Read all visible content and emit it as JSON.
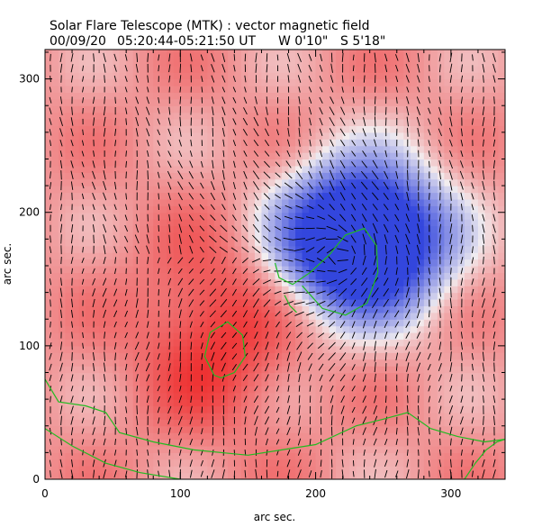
{
  "chart_data": {
    "type": "heatmap",
    "title": "Solar Flare Telescope (MTK) : vector magnetic field",
    "subtitle": {
      "date": "00/09/20",
      "time_range": "05:20:44-05:21:50 UT",
      "longitude": "W 0'10\"",
      "latitude": "S 5'18\""
    },
    "xlabel": "arc sec.",
    "ylabel": "arc sec.",
    "xlim": [
      0,
      340
    ],
    "ylim": [
      0,
      322
    ],
    "xticks": [
      0,
      100,
      200,
      300
    ],
    "yticks": [
      0,
      100,
      200,
      300
    ],
    "xtick_labels": [
      "0",
      "100",
      "200",
      "300"
    ],
    "ytick_labels": [
      "0",
      "100",
      "200",
      "300"
    ],
    "colors": {
      "positive_polarity": "#ee2020",
      "negative_polarity": "#3346dd",
      "neutral": "#f2eef0",
      "contour": "#22bb22",
      "vectors": "#000000"
    },
    "regions": [
      {
        "polarity": "negative",
        "center": [
          235,
          180
        ],
        "extent": [
          70,
          65
        ],
        "strength": 1.0
      },
      {
        "polarity": "positive",
        "center": [
          125,
          110
        ],
        "extent": [
          70,
          85
        ],
        "strength": 1.0
      }
    ],
    "contours": [
      {
        "name": "neutral-line-main",
        "points": [
          [
            190,
            145
          ],
          [
            205,
            128
          ],
          [
            222,
            123
          ],
          [
            238,
            132
          ],
          [
            246,
            155
          ],
          [
            245,
            175
          ],
          [
            236,
            188
          ],
          [
            222,
            183
          ],
          [
            210,
            168
          ],
          [
            196,
            155
          ],
          [
            183,
            146
          ],
          [
            173,
            151
          ],
          [
            170,
            162
          ]
        ]
      },
      {
        "name": "neutral-line-left",
        "points": [
          [
            177,
            138
          ],
          [
            181,
            130
          ],
          [
            186,
            125
          ]
        ]
      },
      {
        "name": "positive-core-contour",
        "points": [
          [
            125,
            78
          ],
          [
            118,
            92
          ],
          [
            122,
            110
          ],
          [
            135,
            118
          ],
          [
            146,
            108
          ],
          [
            148,
            92
          ],
          [
            140,
            80
          ],
          [
            130,
            76
          ],
          [
            125,
            78
          ]
        ]
      },
      {
        "name": "lower-contour",
        "points": [
          [
            0,
            75
          ],
          [
            10,
            58
          ],
          [
            30,
            55
          ],
          [
            45,
            50
          ],
          [
            55,
            35
          ],
          [
            80,
            28
          ],
          [
            110,
            22
          ],
          [
            150,
            18
          ],
          [
            175,
            22
          ],
          [
            200,
            26
          ],
          [
            230,
            40
          ],
          [
            250,
            45
          ],
          [
            268,
            50
          ],
          [
            285,
            38
          ],
          [
            305,
            32
          ],
          [
            325,
            28
          ],
          [
            340,
            30
          ]
        ]
      },
      {
        "name": "bottom-contour",
        "points": [
          [
            0,
            38
          ],
          [
            20,
            25
          ],
          [
            45,
            12
          ],
          [
            70,
            5
          ],
          [
            100,
            0
          ]
        ]
      },
      {
        "name": "bottom-right-contour",
        "points": [
          [
            310,
            0
          ],
          [
            318,
            12
          ],
          [
            326,
            22
          ],
          [
            334,
            28
          ],
          [
            340,
            30
          ]
        ]
      }
    ]
  }
}
